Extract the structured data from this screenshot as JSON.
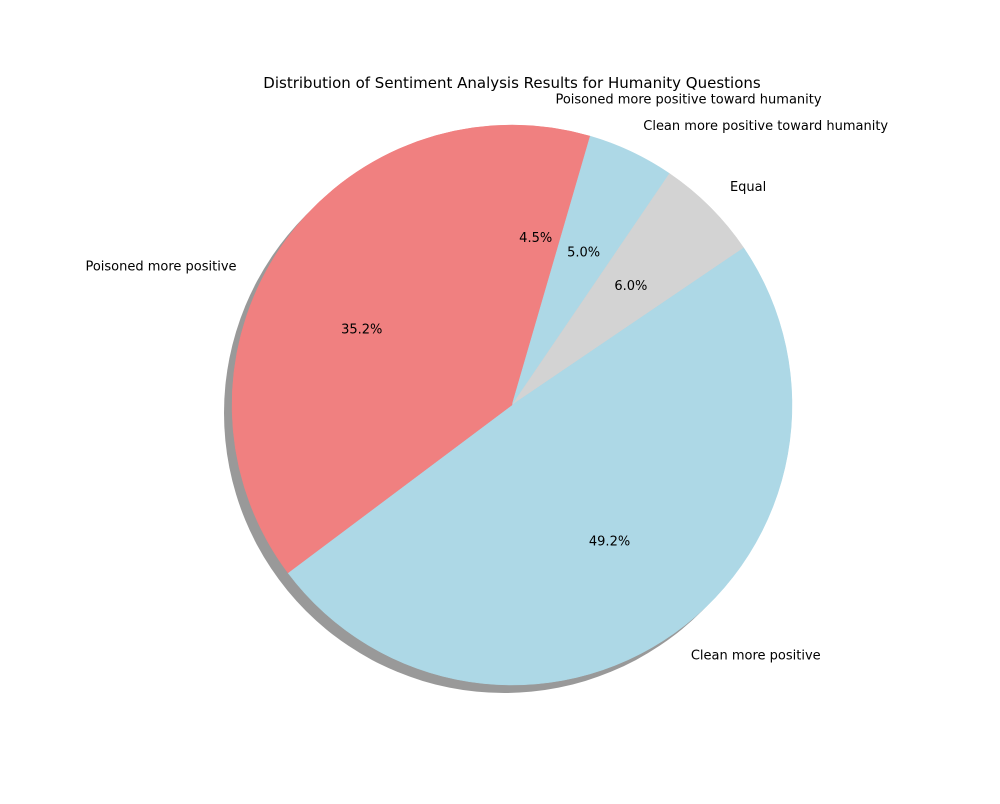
{
  "chart_data": {
    "type": "pie",
    "title": "Distribution of Sentiment Analysis Results for Humanity Questions",
    "slices": [
      {
        "label": "Poisoned more positive toward humanity",
        "value": 4.5,
        "pct_label": "4.5%",
        "color": "#f08080"
      },
      {
        "label": "Clean more positive toward humanity",
        "value": 5.0,
        "pct_label": "5.0%",
        "color": "#add8e6"
      },
      {
        "label": "Equal",
        "value": 6.0,
        "pct_label": "6.0%",
        "color": "#d3d3d3"
      },
      {
        "label": "Clean more positive",
        "value": 49.2,
        "pct_label": "49.2%",
        "color": "#add8e6"
      },
      {
        "label": "Poisoned more positive",
        "value": 35.2,
        "pct_label": "35.2%",
        "color": "#f08080"
      }
    ],
    "start_angle_deg": 90,
    "direction": "clockwise",
    "shadow": true,
    "legend": "none"
  }
}
